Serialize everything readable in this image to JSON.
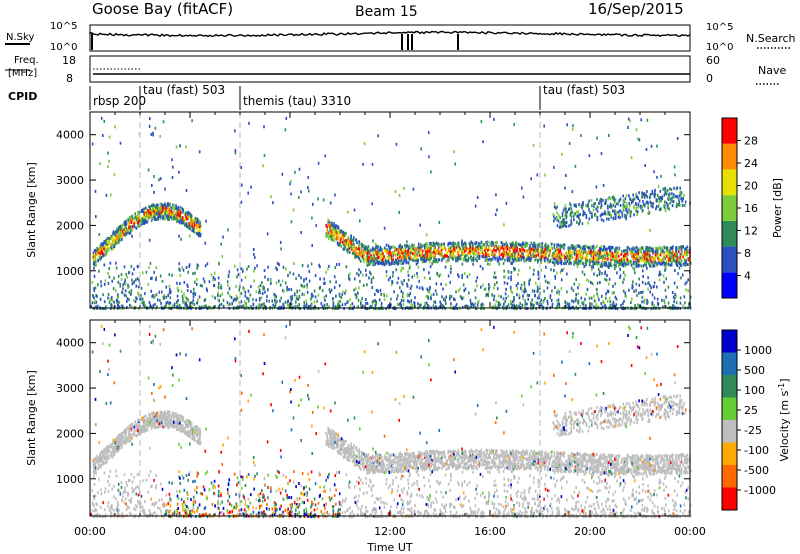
{
  "header": {
    "station": "Goose Bay (fitACF)",
    "beam": "Beam 15",
    "date": "16/Sep/2015"
  },
  "noise_panel": {
    "left_label": "N.Sky",
    "left_ticks": [
      "10^5",
      "10^0"
    ],
    "right_label": "N.Search",
    "right_ticks": [
      "10^5",
      "10^0"
    ]
  },
  "freq_panel": {
    "left_label_line1": "Freq.",
    "left_label_line2": "[MHz]",
    "left_ticks": [
      "18",
      "8"
    ],
    "right_label": "Nave",
    "right_ticks": [
      "60",
      "0"
    ]
  },
  "cpid": {
    "label": "CPID",
    "modes": [
      {
        "text": "rbsp 200",
        "start_hour": 0.0
      },
      {
        "text": "tau (fast) 503",
        "start_hour": 2.0
      },
      {
        "text": "themis (tau) 3310",
        "start_hour": 6.0
      },
      {
        "text": "tau (fast) 503",
        "start_hour": 18.0
      }
    ]
  },
  "x_axis": {
    "label": "Time UT",
    "ticks": [
      "00:00",
      "04:00",
      "08:00",
      "12:00",
      "16:00",
      "20:00",
      "00:00"
    ]
  },
  "chart_data": [
    {
      "type": "heatmap",
      "name": "power",
      "ylabel": "Slant Range [km]",
      "xlim": [
        0,
        24
      ],
      "ylim": [
        180,
        4500
      ],
      "yticks": [
        "1000",
        "2000",
        "3000",
        "4000"
      ],
      "colorbar_label": "Power [dB]",
      "colorbar_ticks": [
        "4",
        "8",
        "12",
        "16",
        "20",
        "24",
        "28"
      ],
      "colorbar_colors": [
        "#0000ff",
        "#2a52be",
        "#2e8b57",
        "#7ccd3c",
        "#e8e000",
        "#ff8c00",
        "#ff0000"
      ],
      "bands": [
        {
          "t_start": 0.1,
          "t_end": 4.4,
          "range_km": "1500-2400",
          "description": "sloped echo band"
        },
        {
          "t_start": 9.4,
          "t_end": 24.0,
          "range_km": "1200-1800",
          "description": "main echo band"
        },
        {
          "t_start": 0.0,
          "t_end": 24.0,
          "range_km": "180-600",
          "description": "near-range scatter"
        }
      ]
    },
    {
      "type": "heatmap",
      "name": "velocity",
      "ylabel": "Slant Range [km]",
      "xlim": [
        0,
        24
      ],
      "ylim": [
        180,
        4500
      ],
      "yticks": [
        "1000",
        "2000",
        "3000",
        "4000"
      ],
      "colorbar_label": "Velocity [m s^-1]",
      "colorbar_unit_main": "Velocity  [m s",
      "colorbar_unit_exp": "-1",
      "colorbar_ticks": [
        "1000",
        "500",
        "100",
        "25",
        "-25",
        "-100",
        "-500",
        "-1000"
      ],
      "colorbar_colors": [
        "#0000cd",
        "#1e6eb4",
        "#2e8b57",
        "#66cc33",
        "#bebebe",
        "#ffaa00",
        "#ff6a00",
        "#ff0000"
      ]
    }
  ]
}
